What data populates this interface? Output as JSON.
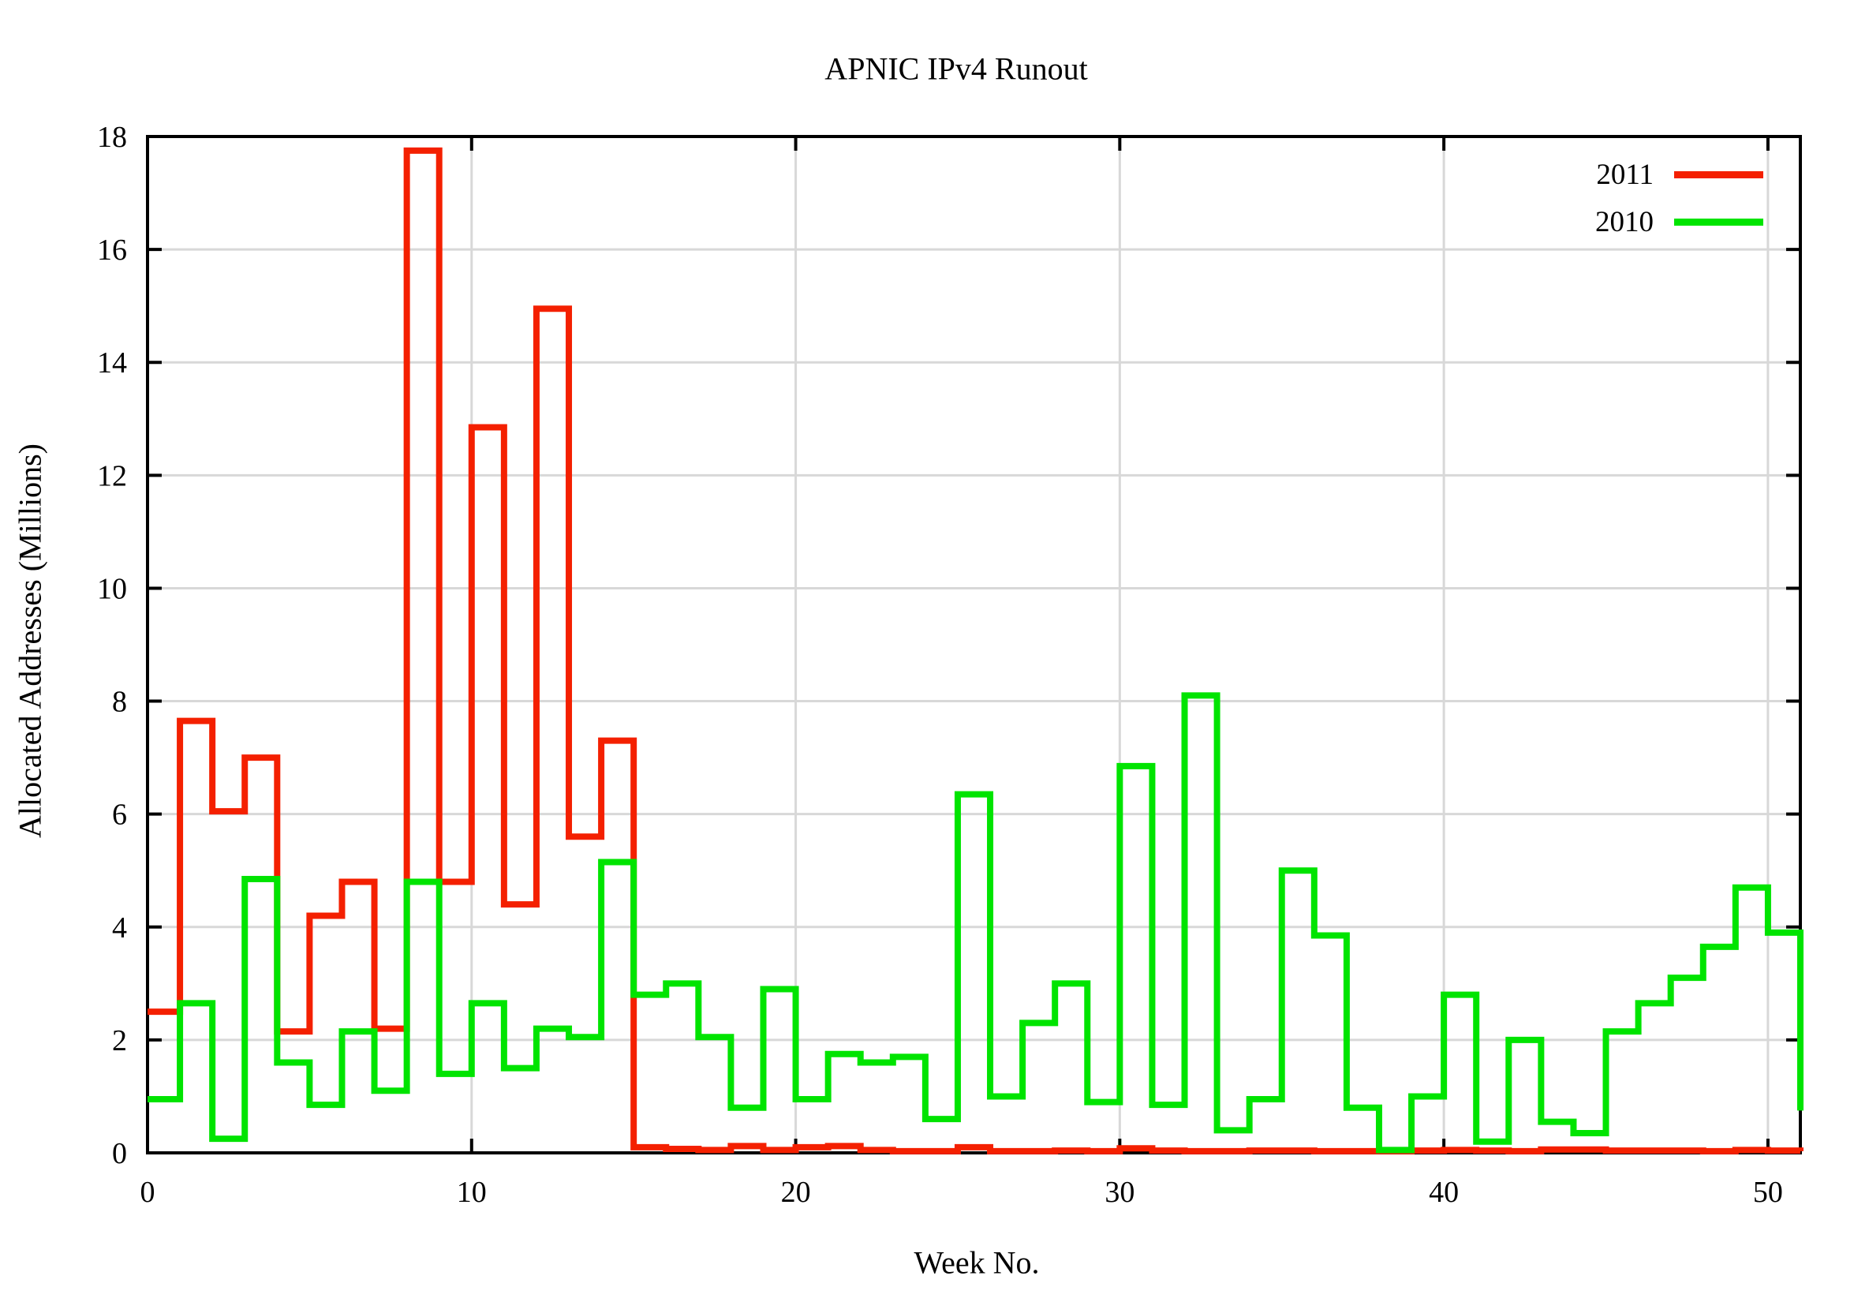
{
  "title": "APNIC IPv4 Runout",
  "x_axis": {
    "label": "Week No.",
    "ticks": [
      0,
      10,
      20,
      30,
      40,
      50
    ],
    "range": [
      0,
      51
    ]
  },
  "y_axis": {
    "label": "Allocated Addresses (Millions)",
    "ticks": [
      0,
      2,
      4,
      6,
      8,
      10,
      12,
      14,
      16,
      18
    ],
    "range": [
      0,
      18
    ]
  },
  "legend": {
    "items": [
      {
        "label": "2011",
        "color": "#f42000"
      },
      {
        "label": "2010",
        "color": "#00e400"
      }
    ]
  },
  "colors": {
    "grid": "#d8d8d8",
    "border": "#000000",
    "series_2011": "#f42000",
    "series_2010": "#00e400"
  },
  "chart_data": {
    "type": "line",
    "style": "steps",
    "title": "APNIC IPv4 Runout",
    "xlabel": "Week No.",
    "ylabel": "Allocated Addresses (Millions)",
    "xlim": [
      0,
      51
    ],
    "ylim": [
      0,
      18
    ],
    "grid": true,
    "legend_position": "top-right",
    "x": [
      0,
      1,
      2,
      3,
      4,
      5,
      6,
      7,
      8,
      9,
      10,
      11,
      12,
      13,
      14,
      15,
      16,
      17,
      18,
      19,
      20,
      21,
      22,
      23,
      24,
      25,
      26,
      27,
      28,
      29,
      30,
      31,
      32,
      33,
      34,
      35,
      36,
      37,
      38,
      39,
      40,
      41,
      42,
      43,
      44,
      45,
      46,
      47,
      48,
      49,
      50,
      51
    ],
    "series": [
      {
        "name": "2011",
        "color": "#f42000",
        "values": [
          2.5,
          7.65,
          6.05,
          7.0,
          2.15,
          4.2,
          4.8,
          2.2,
          17.75,
          4.8,
          12.85,
          4.4,
          14.95,
          5.6,
          7.3,
          0.1,
          0.07,
          0.05,
          0.12,
          0.05,
          0.1,
          0.12,
          0.05,
          0.03,
          0.03,
          0.1,
          0.03,
          0.03,
          0.04,
          0.03,
          0.08,
          0.04,
          0.03,
          0.03,
          0.04,
          0.04,
          0.03,
          0.03,
          0.03,
          0.04,
          0.05,
          0.04,
          0.03,
          0.06,
          0.06,
          0.04,
          0.04,
          0.04,
          0.03,
          0.05,
          0.04,
          0.03
        ]
      },
      {
        "name": "2010",
        "color": "#00e400",
        "values": [
          0.95,
          2.65,
          0.25,
          4.85,
          1.6,
          0.85,
          2.15,
          1.1,
          4.8,
          1.4,
          2.65,
          1.5,
          2.2,
          2.05,
          5.15,
          2.8,
          3.0,
          2.05,
          0.8,
          2.9,
          0.95,
          1.75,
          1.6,
          1.7,
          0.6,
          6.35,
          1.0,
          2.3,
          3.0,
          0.9,
          6.85,
          0.85,
          8.1,
          0.4,
          0.95,
          5.0,
          3.85,
          0.8,
          0.05,
          1.0,
          2.8,
          0.2,
          2.0,
          0.55,
          0.35,
          2.15,
          2.65,
          3.1,
          3.65,
          4.7,
          3.9,
          0.75
        ]
      }
    ]
  }
}
